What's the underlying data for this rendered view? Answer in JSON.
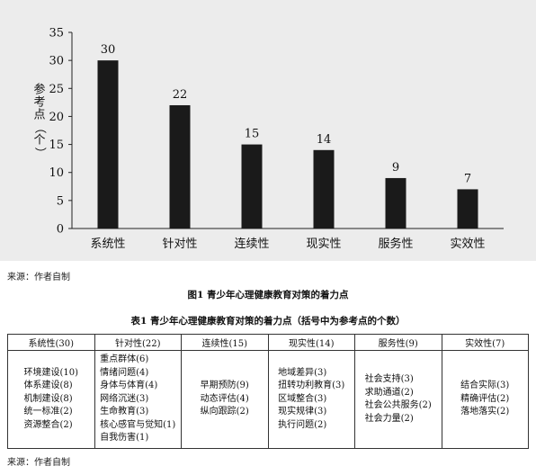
{
  "chart_data": {
    "type": "bar",
    "categories": [
      "系统性",
      "针对性",
      "连续性",
      "现实性",
      "服务性",
      "实效性"
    ],
    "values": [
      30,
      22,
      15,
      14,
      9,
      7
    ],
    "ylabel": "参考点（个）",
    "xlabel": "",
    "ylim": [
      0,
      35
    ],
    "yticks": [
      0,
      5,
      10,
      15,
      20,
      25,
      30,
      35
    ],
    "grid": false,
    "bar_color": "#1a1a1a",
    "background_color": "#ececec",
    "data_labels": true
  },
  "figure": {
    "source": "来源：作者自制",
    "caption": "图1  青少年心理健康教育对策的着力点"
  },
  "table": {
    "caption": "表1  青少年心理健康教育对策的着力点（括号中为参考点的个数）",
    "headers": [
      "系统性(30)",
      "针对性(22)",
      "连续性(15)",
      "现实性(14)",
      "服务性(9)",
      "实效性(7)"
    ],
    "columns": [
      [
        "环境建设(10)",
        "体系建设(8)",
        "机制建设(8)",
        "统一标准(2)",
        "资源整合(2)"
      ],
      [
        "重点群体(6)",
        "情绪问题(4)",
        "身体与体育(4)",
        "网络沉迷(3)",
        "生命教育(3)",
        "核心感官与觉知(1)",
        "自我伤害(1)"
      ],
      [
        "早期预防(9)",
        "动态评估(4)",
        "纵向跟踪(2)"
      ],
      [
        "地域差异(3)",
        "扭转功利教育(3)",
        "区域整合(3)",
        "现实规律(3)",
        "执行问题(2)"
      ],
      [
        "社会支持(3)",
        "求助通道(2)",
        "社会公共服务(2)",
        "社会力量(2)"
      ],
      [
        "结合实际(3)",
        "精确评估(2)",
        "落地落实(2)"
      ]
    ],
    "source": "来源：作者自制"
  }
}
